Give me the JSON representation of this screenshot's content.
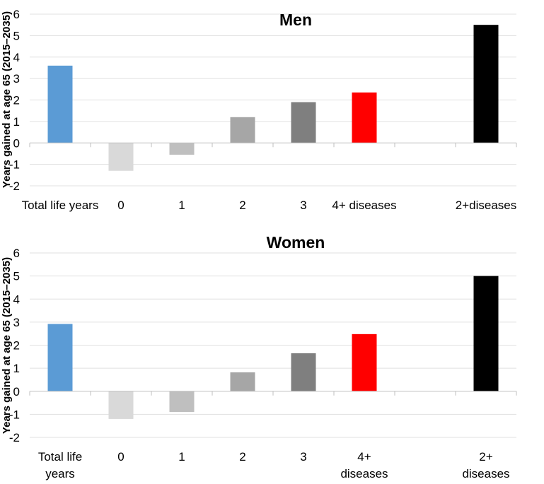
{
  "chart_data": [
    {
      "type": "bar",
      "title": "Men",
      "ylabel": "Years gained at age 65 (2015–2035)",
      "ylim": [
        -2,
        6
      ],
      "yticks": [
        -2,
        -1,
        0,
        1,
        2,
        3,
        4,
        5,
        6
      ],
      "categories": [
        [
          "Total life years"
        ],
        [
          "0"
        ],
        [
          "1"
        ],
        [
          "2"
        ],
        [
          "3"
        ],
        [
          "4+ diseases"
        ],
        [],
        [
          "2+diseases"
        ]
      ],
      "values": [
        3.6,
        -1.3,
        -0.55,
        1.2,
        1.9,
        2.35,
        null,
        5.5
      ],
      "colors": [
        "#5b9bd5",
        "#d9d9d9",
        "#bfbfbf",
        "#a6a6a6",
        "#7f7f7f",
        "#ff0000",
        null,
        "#000000"
      ],
      "grid": true
    },
    {
      "type": "bar",
      "title": "Women",
      "ylabel": "Years gained at age 65 (2015–2035)",
      "ylim": [
        -2,
        6
      ],
      "yticks": [
        -2,
        -1,
        0,
        1,
        2,
        3,
        4,
        5,
        6
      ],
      "categories": [
        [
          "Total life",
          "years"
        ],
        [
          "0"
        ],
        [
          "1"
        ],
        [
          "2"
        ],
        [
          "3"
        ],
        [
          "4+",
          "diseases"
        ],
        [],
        [
          "2+",
          "diseases"
        ]
      ],
      "values": [
        2.92,
        -1.2,
        -0.9,
        0.82,
        1.65,
        2.48,
        null,
        5.0
      ],
      "colors": [
        "#5b9bd5",
        "#d9d9d9",
        "#bfbfbf",
        "#a6a6a6",
        "#7f7f7f",
        "#ff0000",
        null,
        "#000000"
      ],
      "grid": true
    }
  ]
}
